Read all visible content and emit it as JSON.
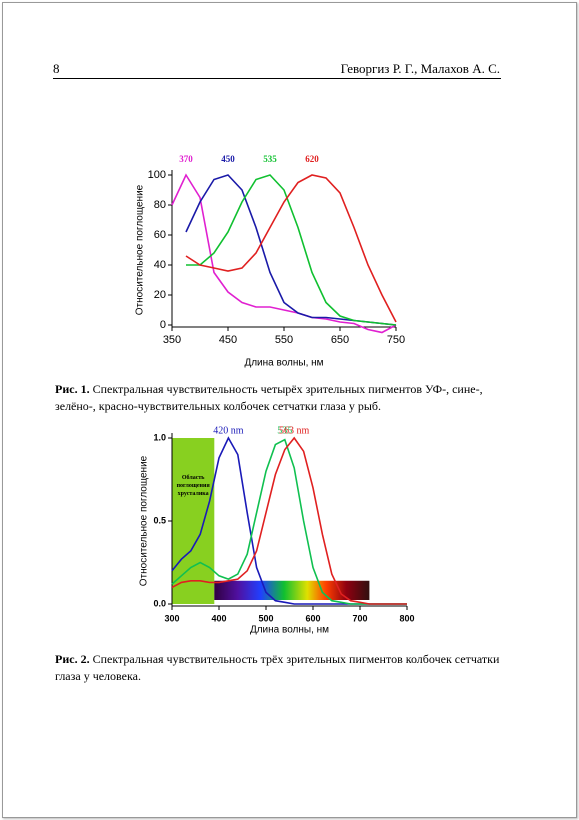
{
  "header": {
    "page_number": "8",
    "authors": "Геворгиз Р. Г., Малахов А. С."
  },
  "chart_data": [
    {
      "type": "line",
      "ylabel": "Относительное поглощение",
      "xlabel": "Длина волны, нм",
      "xlim": [
        350,
        750
      ],
      "xticks": [
        350,
        450,
        550,
        650,
        750
      ],
      "ylim": [
        0,
        100
      ],
      "yticks": [
        0,
        20,
        40,
        60,
        80,
        100
      ],
      "x": [
        350,
        375,
        400,
        425,
        450,
        475,
        500,
        525,
        550,
        575,
        600,
        625,
        650,
        675,
        700,
        725,
        750
      ],
      "series": [
        {
          "name": "370",
          "color": "#e020d0",
          "values": [
            80,
            100,
            85,
            35,
            22,
            15,
            12,
            12,
            10,
            8,
            5,
            4,
            2,
            1,
            -3,
            -5,
            0
          ]
        },
        {
          "name": "450",
          "color": "#1a1aa8",
          "values": [
            null,
            62,
            82,
            97,
            100,
            90,
            65,
            35,
            15,
            8,
            5,
            5,
            4,
            3,
            2,
            1,
            0
          ]
        },
        {
          "name": "535",
          "color": "#10c030",
          "values": [
            null,
            40,
            40,
            48,
            62,
            82,
            97,
            100,
            90,
            65,
            35,
            15,
            6,
            3,
            2,
            1,
            0
          ]
        },
        {
          "name": "620",
          "color": "#e02020",
          "values": [
            null,
            46,
            40,
            38,
            36,
            38,
            48,
            65,
            82,
            95,
            100,
            98,
            88,
            65,
            40,
            20,
            2
          ]
        }
      ]
    },
    {
      "type": "line",
      "ylabel": "Относительное поглощение",
      "xlabel": "Длина волны, нм",
      "xlim": [
        300,
        800
      ],
      "xticks": [
        300,
        400,
        500,
        600,
        700,
        800
      ],
      "ylim": [
        0,
        1
      ],
      "yticks": [
        {
          "value": 0,
          "label": "0.0"
        },
        0.5,
        {
          "value": 1,
          "label": "1.0"
        }
      ],
      "annotation": "Область поглощения хрусталика",
      "x": [
        300,
        320,
        340,
        360,
        380,
        400,
        420,
        440,
        460,
        480,
        500,
        520,
        540,
        560,
        580,
        600,
        620,
        640,
        660,
        680,
        700,
        720,
        740,
        760,
        780,
        800
      ],
      "series": [
        {
          "name": "420 nm",
          "color": "#1a1ab8",
          "values": [
            0.2,
            0.27,
            0.32,
            0.42,
            0.62,
            0.88,
            1.0,
            0.9,
            0.55,
            0.22,
            0.07,
            0.02,
            0.01,
            0,
            0,
            0,
            0,
            0,
            0,
            0,
            0,
            0,
            0,
            0,
            0,
            0
          ]
        },
        {
          "name": "535",
          "color": "#10c050",
          "values": [
            0.12,
            0.17,
            0.22,
            0.25,
            0.22,
            0.17,
            0.15,
            0.18,
            0.3,
            0.55,
            0.8,
            0.96,
            0.99,
            0.82,
            0.5,
            0.22,
            0.07,
            0.02,
            0.01,
            0,
            0,
            0,
            0,
            0,
            0,
            0
          ]
        },
        {
          "name": "563 nm",
          "color": "#e02020",
          "values": [
            0.1,
            0.13,
            0.14,
            0.14,
            0.13,
            0.13,
            0.14,
            0.15,
            0.2,
            0.32,
            0.55,
            0.78,
            0.93,
            1.0,
            0.92,
            0.7,
            0.42,
            0.18,
            0.06,
            0.02,
            0.01,
            0,
            0,
            0,
            0,
            0
          ]
        }
      ]
    }
  ],
  "captions": [
    {
      "label": "Рис. 1.",
      "text": "Спектральная чувствительность четырёх зрительных пигментов УФ-, сине-, зелёно-, красно-чувствительных колбочек сетчатки глаза у рыб."
    },
    {
      "label": "Рис. 2.",
      "text": "Спектральная чувствительность трёх зрительных пигментов колбочек сетчатки глаза у человека."
    }
  ]
}
